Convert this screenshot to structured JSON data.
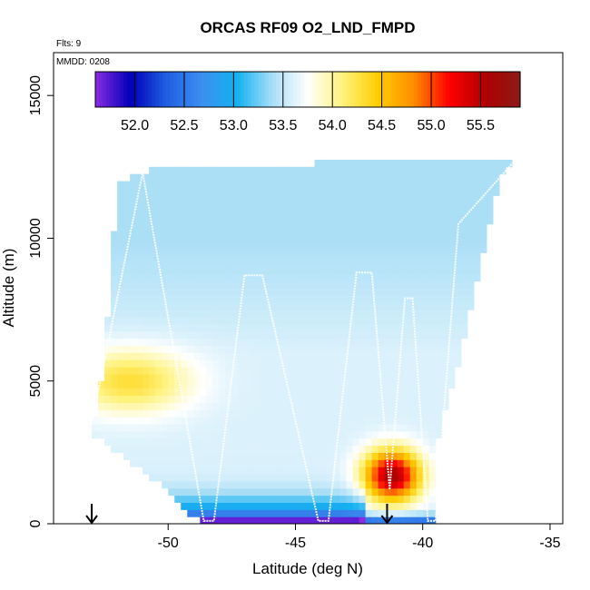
{
  "chart_data": {
    "type": "heatmap",
    "title": "ORCAS RF09 O2_LND_FMPD",
    "xlabel": "Latitude (deg N)",
    "ylabel": "Altitude (m)",
    "xlim": [
      -54.5,
      -34.5
    ],
    "ylim": [
      0,
      16500
    ],
    "x_ticks": [
      -50,
      -45,
      -40,
      -35
    ],
    "y_ticks": [
      0,
      5000,
      10000,
      15000
    ],
    "x_tick_labels": [
      "-50",
      "-45",
      "-40",
      "-35"
    ],
    "y_tick_labels": [
      "0",
      "5000",
      "10000",
      "15000"
    ],
    "annotations": {
      "flights": "Flts: 9",
      "mmdd": "MMDD: 0208"
    },
    "colorbar": {
      "vmin": 51.6,
      "vmax": 55.9,
      "tick_values": [
        52.0,
        52.5,
        53.0,
        53.5,
        54.0,
        54.5,
        55.0,
        55.5
      ],
      "tick_labels": [
        "52.0",
        "52.5",
        "53.0",
        "53.5",
        "54.0",
        "54.5",
        "55.0",
        "55.5"
      ],
      "colors": [
        "#8a2be2",
        "#0000b8",
        "#1f5fe0",
        "#3d8ef0",
        "#12b2f0",
        "#a8def6",
        "#ffffff",
        "#fff27a",
        "#ffcc00",
        "#ff8c00",
        "#ff0000",
        "#b00000",
        "#8b1a1a"
      ]
    },
    "arrows_latitude": [
      -53.0,
      -41.4
    ],
    "field": {
      "domain_lat": [
        -53.0,
        -35.0
      ],
      "top_altitude": [
        [
          -53.0,
          3200
        ],
        [
          -52.6,
          5000
        ],
        [
          -52.3,
          8000
        ],
        [
          -52.0,
          12000
        ],
        [
          -50.7,
          12400
        ],
        [
          -45.0,
          12600
        ],
        [
          -39.5,
          12800
        ],
        [
          -38.2,
          12600
        ],
        [
          -37.2,
          10500
        ],
        [
          -38.0,
          8000
        ],
        [
          -38.6,
          5500
        ],
        [
          -39.3,
          3500
        ],
        [
          -39.6,
          1500
        ],
        [
          -39.6,
          300
        ]
      ],
      "bottom_altitude": [
        [
          -53.0,
          3200
        ],
        [
          -51.5,
          2200
        ],
        [
          -50.5,
          1500
        ],
        [
          -49.5,
          700
        ],
        [
          -48.7,
          0
        ],
        [
          -39.6,
          0
        ]
      ],
      "background_value": 53.6,
      "upper_value": 53.4,
      "features": [
        {
          "name": "mid-level yellow band",
          "lat": -51.5,
          "alt": 5000,
          "value": 54.3
        },
        {
          "name": "low-level red core",
          "lat": -41.2,
          "alt": 1700,
          "value": 55.6
        },
        {
          "name": "near-surface blue layer",
          "lat": -44.0,
          "alt": 500,
          "value": 52.6
        },
        {
          "name": "surface dark blue",
          "lat": -44.0,
          "alt": 150,
          "value": 52.1
        }
      ]
    },
    "flight_track": [
      [
        -53.0,
        3500
      ],
      [
        -51.0,
        12300
      ],
      [
        -48.6,
        100
      ],
      [
        -48.2,
        100
      ],
      [
        -47.0,
        8700
      ],
      [
        -46.3,
        8700
      ],
      [
        -44.1,
        100
      ],
      [
        -43.7,
        100
      ],
      [
        -42.6,
        8800
      ],
      [
        -42.0,
        8800
      ],
      [
        -41.3,
        1200
      ],
      [
        -40.7,
        7900
      ],
      [
        -40.4,
        7900
      ],
      [
        -39.8,
        100
      ],
      [
        -39.5,
        100
      ],
      [
        -38.6,
        10500
      ],
      [
        -36.4,
        12700
      ],
      [
        -35.0,
        12700
      ]
    ]
  }
}
